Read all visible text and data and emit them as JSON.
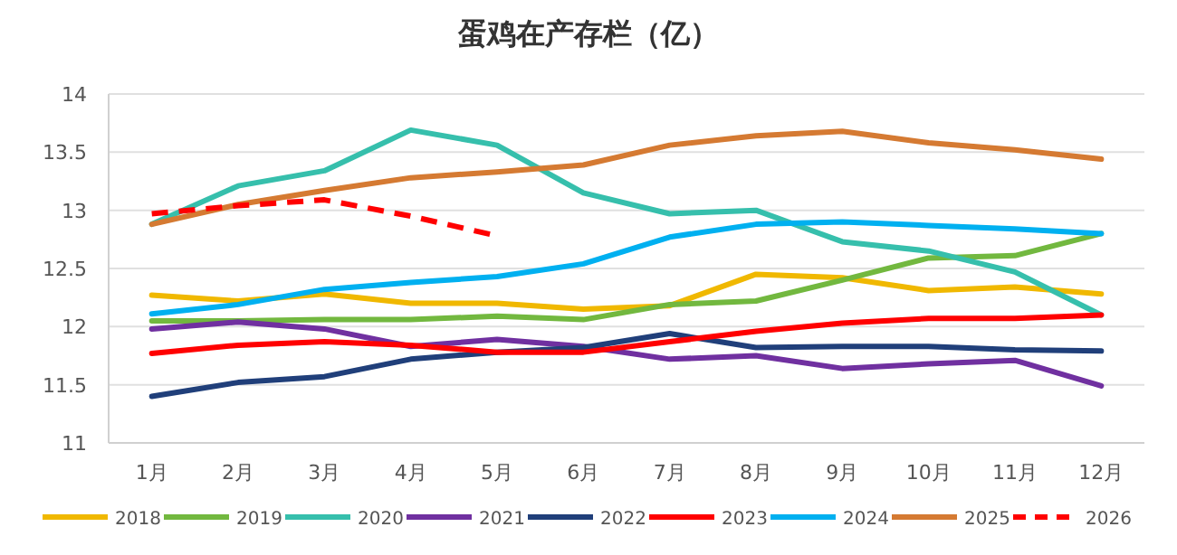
{
  "chart_data": {
    "type": "line",
    "title": "蛋鸡在产存栏（亿）",
    "categories": [
      "1月",
      "2月",
      "3月",
      "4月",
      "5月",
      "6月",
      "7月",
      "8月",
      "9月",
      "10月",
      "11月",
      "12月"
    ],
    "ylim": [
      11,
      14
    ],
    "yticks": [
      11,
      11.5,
      12,
      12.5,
      13,
      13.5,
      14
    ],
    "grid": "y",
    "legend": "bottom",
    "marker": "none",
    "series": [
      {
        "name": "2018",
        "color": "#f0b800",
        "values": [
          12.27,
          12.22,
          12.28,
          12.2,
          12.2,
          12.15,
          12.18,
          12.45,
          12.42,
          12.31,
          12.34,
          12.28
        ]
      },
      {
        "name": "2019",
        "color": "#72b83f",
        "values": [
          12.05,
          12.05,
          12.06,
          12.06,
          12.09,
          12.06,
          12.19,
          12.22,
          12.4,
          12.59,
          12.61,
          12.8
        ]
      },
      {
        "name": "2020",
        "color": "#36bfac",
        "values": [
          12.88,
          13.21,
          13.34,
          13.69,
          13.56,
          13.15,
          12.97,
          13.0,
          12.73,
          12.65,
          12.47,
          12.1
        ]
      },
      {
        "name": "2021",
        "color": "#7030a0",
        "values": [
          11.98,
          12.04,
          11.98,
          11.83,
          11.89,
          11.83,
          11.72,
          11.75,
          11.64,
          11.68,
          11.71,
          11.49
        ]
      },
      {
        "name": "2022",
        "color": "#203f7a",
        "values": [
          11.4,
          11.52,
          11.57,
          11.72,
          11.78,
          11.82,
          11.94,
          11.82,
          11.83,
          11.83,
          11.8,
          11.79
        ]
      },
      {
        "name": "2023",
        "color": "#ff0000",
        "values": [
          11.77,
          11.84,
          11.87,
          11.84,
          11.78,
          11.78,
          11.87,
          11.96,
          12.03,
          12.07,
          12.07,
          12.1
        ]
      },
      {
        "name": "2024",
        "color": "#00b0f0",
        "values": [
          12.11,
          12.19,
          12.32,
          12.38,
          12.43,
          12.54,
          12.77,
          12.88,
          12.9,
          12.87,
          12.84,
          12.8
        ]
      },
      {
        "name": "2025",
        "color": "#d57a32",
        "values": [
          12.88,
          13.05,
          13.17,
          13.28,
          13.33,
          13.39,
          13.56,
          13.64,
          13.68,
          13.58,
          13.52,
          13.44
        ]
      },
      {
        "name": "2026",
        "color": "#ff0000",
        "line_style": "dashed",
        "values": [
          12.97,
          13.04,
          13.09,
          12.95,
          12.78,
          null,
          null,
          null,
          null,
          null,
          null,
          null
        ]
      }
    ]
  }
}
